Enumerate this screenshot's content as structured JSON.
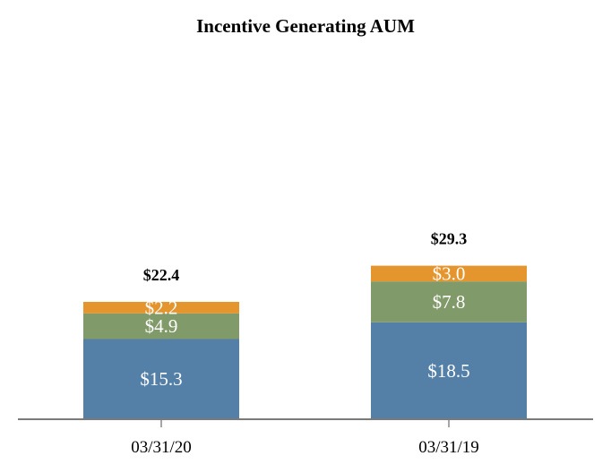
{
  "chart_data": {
    "type": "bar",
    "stacked": true,
    "title": "Incentive Generating AUM",
    "xlabel": "",
    "ylabel": "",
    "ylim": [
      0,
      40
    ],
    "grid": false,
    "categories": [
      "03/31/20",
      "03/31/19"
    ],
    "series": [
      {
        "values": [
          15.3,
          18.5
        ],
        "labels": [
          "$15.3",
          "$18.5"
        ],
        "color": "#5480a8"
      },
      {
        "values": [
          4.9,
          7.8
        ],
        "labels": [
          "$4.9",
          "$7.8"
        ],
        "color": "#819a69"
      },
      {
        "values": [
          2.2,
          3.0
        ],
        "labels": [
          "$2.2",
          "$3.0"
        ],
        "color": "#e5952d"
      }
    ],
    "totals": [
      22.4,
      29.3
    ],
    "total_labels": [
      "$22.4",
      "$29.3"
    ]
  }
}
